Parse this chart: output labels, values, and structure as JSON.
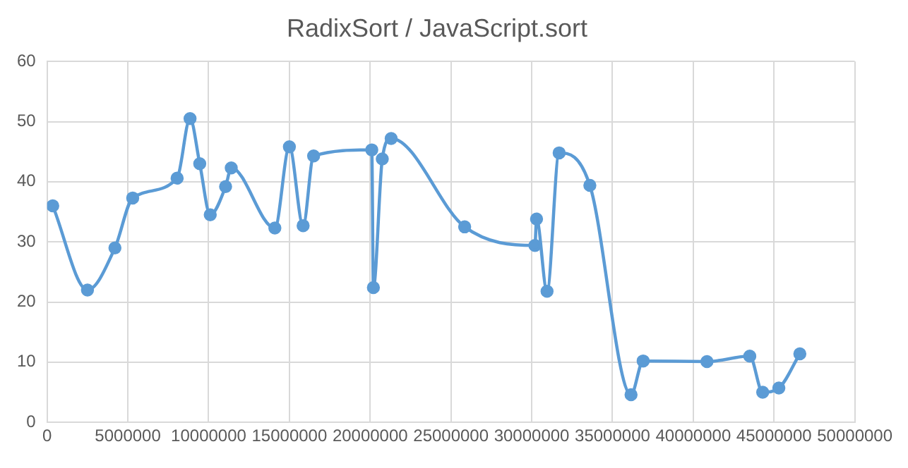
{
  "chart_data": {
    "type": "line",
    "title": "RadixSort / JavaScript.sort",
    "x": [
      350000,
      2500000,
      4200000,
      5300000,
      8050000,
      8850000,
      9450000,
      10100000,
      11050000,
      11400000,
      14100000,
      15000000,
      15850000,
      16500000,
      20100000,
      20200000,
      20750000,
      21300000,
      25850000,
      30200000,
      30300000,
      30950000,
      31700000,
      33600000,
      36150000,
      36900000,
      40850000,
      43500000,
      44300000,
      45300000,
      46600000
    ],
    "series": [
      {
        "color": "#5b9bd5",
        "values": [
          36,
          22,
          29,
          37.3,
          40.6,
          50.5,
          43,
          34.5,
          39.2,
          42.3,
          32.3,
          45.8,
          32.7,
          44.3,
          45.3,
          22.4,
          43.8,
          47.2,
          32.5,
          29.4,
          33.8,
          21.8,
          44.8,
          39.4,
          4.6,
          10.2,
          10.1,
          11,
          5,
          5.7,
          11.4
        ]
      }
    ],
    "xlim": [
      0,
      50000000
    ],
    "xticks": [
      0,
      5000000,
      10000000,
      15000000,
      20000000,
      25000000,
      30000000,
      35000000,
      40000000,
      45000000,
      50000000
    ],
    "ylim": [
      0,
      60
    ],
    "yticks": [
      0,
      10,
      20,
      30,
      40,
      50,
      60
    ],
    "grid": true,
    "marker": "circle",
    "line_style": "solid"
  }
}
